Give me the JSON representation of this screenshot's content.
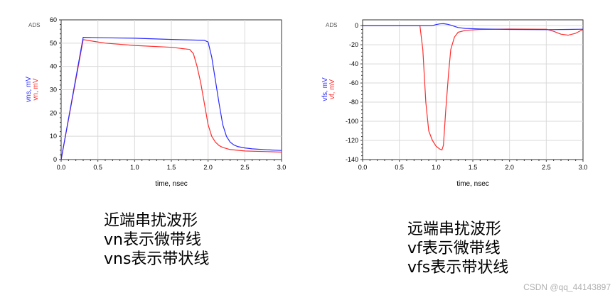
{
  "chart_data": [
    {
      "type": "line",
      "ads_tag": "ADS",
      "xlabel": "time, nsec",
      "ylabel_parts": [
        "vns, mV",
        "vn, mV"
      ],
      "xlim": [
        0,
        3.0
      ],
      "ylim": [
        0,
        60
      ],
      "xticks": [
        "0.0",
        "0.5",
        "1.0",
        "1.5",
        "2.0",
        "2.5",
        "3.0"
      ],
      "yticks": [
        "0",
        "10",
        "20",
        "30",
        "40",
        "50",
        "60"
      ],
      "grid": true,
      "series": [
        {
          "name": "vns",
          "color": "#2b2bff",
          "x": [
            0,
            0.3,
            0.6,
            1.0,
            1.5,
            1.95,
            2.0,
            2.05,
            2.1,
            2.15,
            2.2,
            2.25,
            2.3,
            2.35,
            2.4,
            2.5,
            2.6,
            2.8,
            3.0
          ],
          "y": [
            0,
            52.5,
            52.3,
            52.1,
            51.6,
            51.2,
            50.5,
            44,
            34,
            24,
            15,
            10,
            7.5,
            6.3,
            5.6,
            5.0,
            4.6,
            4.2,
            3.9
          ]
        },
        {
          "name": "vn",
          "color": "#ff2b2b",
          "x": [
            0,
            0.3,
            0.6,
            1.0,
            1.5,
            1.75,
            1.8,
            1.85,
            1.9,
            1.95,
            2.0,
            2.05,
            2.1,
            2.15,
            2.2,
            2.3,
            2.5,
            2.8,
            3.0
          ],
          "y": [
            0,
            51.5,
            50.0,
            49.0,
            48.2,
            47.3,
            45.5,
            40,
            33,
            24,
            15,
            10,
            7.5,
            6.0,
            5.2,
            4.3,
            3.7,
            3.4,
            3.2
          ]
        }
      ]
    },
    {
      "type": "line",
      "ads_tag": "ADS",
      "xlabel": "time, nsec",
      "ylabel_parts": [
        "vfs, mV",
        "vf, mV"
      ],
      "xlim": [
        0,
        3.0
      ],
      "ylim": [
        -140,
        0
      ],
      "xticks": [
        "0.0",
        "0.5",
        "1.0",
        "1.5",
        "2.0",
        "2.5",
        "3.0"
      ],
      "yticks": [
        "0",
        "-20",
        "-40",
        "-60",
        "-80",
        "-100",
        "-120",
        "-140"
      ],
      "ytick_values": [
        0,
        -20,
        -40,
        -60,
        -80,
        -100,
        -120,
        -140
      ],
      "y_draw_range": [
        -140,
        6
      ],
      "grid": true,
      "series": [
        {
          "name": "vfs",
          "color": "#2b2bff",
          "x": [
            0,
            0.5,
            0.95,
            1.0,
            1.05,
            1.1,
            1.15,
            1.2,
            1.25,
            1.3,
            1.4,
            1.6,
            2.0,
            2.5,
            2.8,
            3.0
          ],
          "y": [
            0,
            0,
            0,
            1.0,
            1.8,
            2.0,
            1.5,
            0.5,
            -0.8,
            -2.0,
            -3.0,
            -3.5,
            -4.0,
            -4.2,
            -4.0,
            -3.8
          ]
        },
        {
          "name": "vf",
          "color": "#ff2b2b",
          "x": [
            0,
            0.5,
            0.78,
            0.82,
            0.86,
            0.9,
            0.95,
            1.0,
            1.05,
            1.08,
            1.1,
            1.13,
            1.17,
            1.2,
            1.25,
            1.3,
            1.4,
            1.6,
            2.0,
            2.5,
            2.6,
            2.7,
            2.8,
            2.9,
            3.0
          ],
          "y": [
            0,
            0,
            0,
            -25,
            -80,
            -110,
            -120,
            -126,
            -129,
            -130,
            -125,
            -90,
            -50,
            -25,
            -12,
            -7,
            -5,
            -4,
            -3.6,
            -3.8,
            -6,
            -9,
            -10,
            -8,
            -4
          ]
        }
      ]
    }
  ],
  "captions": {
    "left": [
      "近端串扰波形",
      "vn表示微带线",
      "vns表示带状线"
    ],
    "right": [
      "远端串扰波形",
      "vf表示微带线",
      "vfs表示带状线"
    ]
  },
  "watermark": "CSDN @qq_44143897"
}
